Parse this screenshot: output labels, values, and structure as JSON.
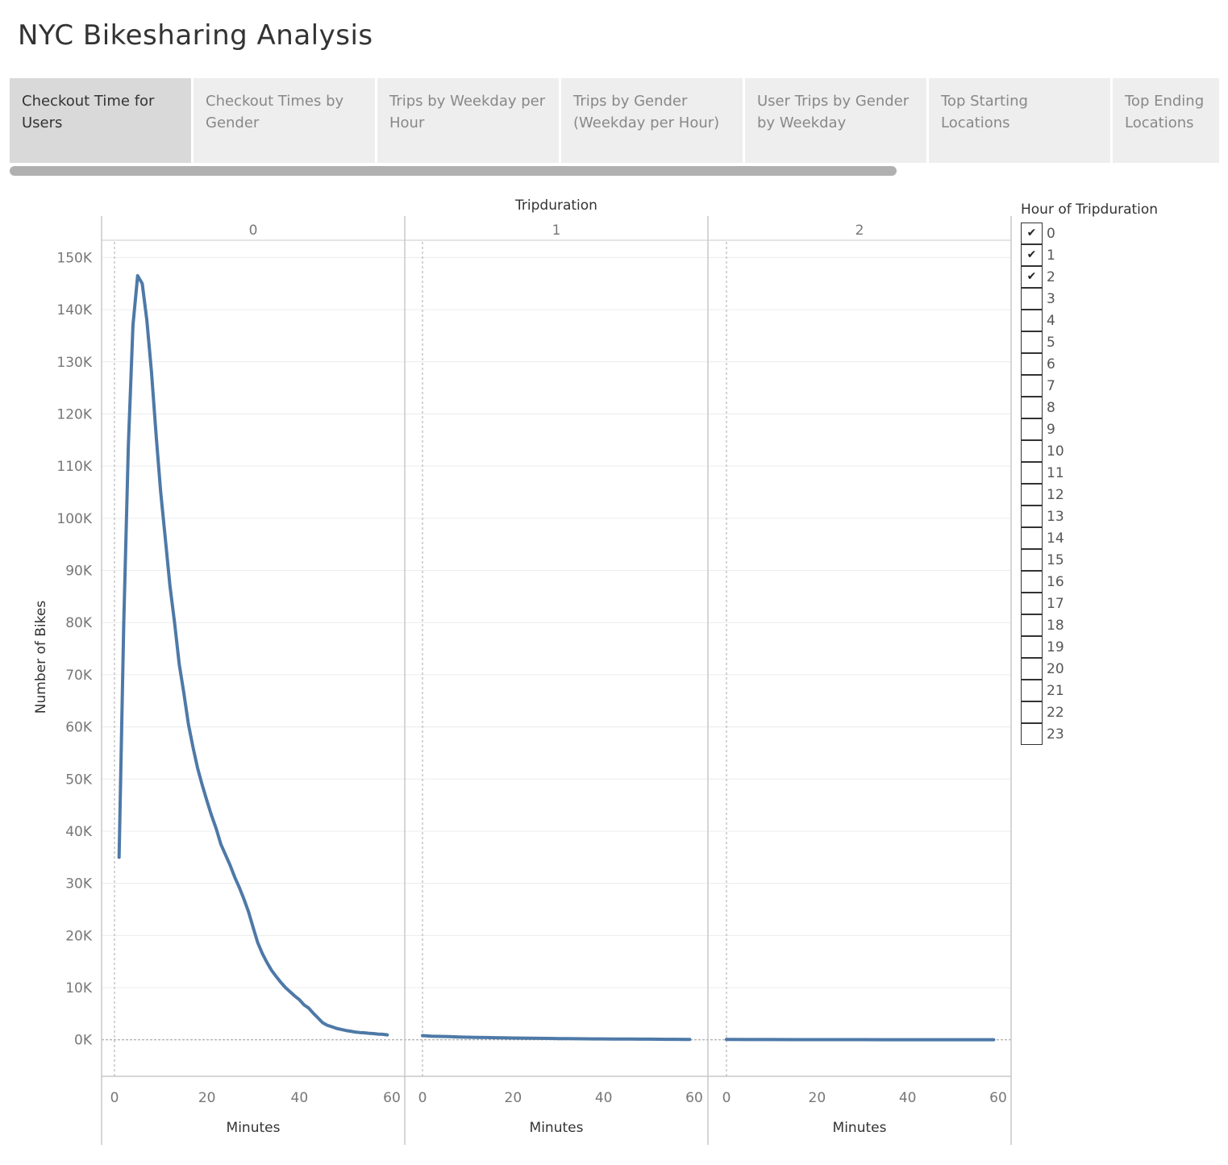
{
  "page": {
    "title": "NYC Bikesharing Analysis"
  },
  "tabs": [
    {
      "label": "Checkout Time for Users",
      "active": true
    },
    {
      "label": "Checkout Times by Gender",
      "active": false
    },
    {
      "label": "Trips by Weekday per Hour",
      "active": false
    },
    {
      "label": "Trips by Gender (Weekday per Hour)",
      "active": false
    },
    {
      "label": "User Trips by Gender by Weekday",
      "active": false
    },
    {
      "label": "Top Starting Locations",
      "active": false
    },
    {
      "label": "Top Ending Locations",
      "active": false
    }
  ],
  "legend": {
    "title": "Hour of Tripduration",
    "items": [
      {
        "label": "0",
        "checked": true
      },
      {
        "label": "1",
        "checked": true
      },
      {
        "label": "2",
        "checked": true
      },
      {
        "label": "3",
        "checked": false
      },
      {
        "label": "4",
        "checked": false
      },
      {
        "label": "5",
        "checked": false
      },
      {
        "label": "6",
        "checked": false
      },
      {
        "label": "7",
        "checked": false
      },
      {
        "label": "8",
        "checked": false
      },
      {
        "label": "9",
        "checked": false
      },
      {
        "label": "10",
        "checked": false
      },
      {
        "label": "11",
        "checked": false
      },
      {
        "label": "12",
        "checked": false
      },
      {
        "label": "13",
        "checked": false
      },
      {
        "label": "14",
        "checked": false
      },
      {
        "label": "15",
        "checked": false
      },
      {
        "label": "16",
        "checked": false
      },
      {
        "label": "17",
        "checked": false
      },
      {
        "label": "18",
        "checked": false
      },
      {
        "label": "19",
        "checked": false
      },
      {
        "label": "20",
        "checked": false
      },
      {
        "label": "21",
        "checked": false
      },
      {
        "label": "22",
        "checked": false
      },
      {
        "label": "23",
        "checked": false
      }
    ]
  },
  "colors": {
    "line": "#4e79a7",
    "grid": "#ececec",
    "axis": "#c8c8c8"
  },
  "chart_data": {
    "type": "line",
    "facet_title": "Tripduration",
    "ylabel": "Number of Bikes",
    "xlabel": "Minutes",
    "ylim": [
      -7000,
      153000
    ],
    "yticks": [
      0,
      10000,
      20000,
      30000,
      40000,
      50000,
      60000,
      70000,
      80000,
      90000,
      100000,
      110000,
      120000,
      130000,
      140000,
      150000
    ],
    "ytick_labels": [
      "0K",
      "10K",
      "20K",
      "30K",
      "40K",
      "50K",
      "60K",
      "70K",
      "80K",
      "90K",
      "100K",
      "110K",
      "120K",
      "130K",
      "140K",
      "150K"
    ],
    "grid": true,
    "legend_position": "right",
    "panels": [
      {
        "label": "0",
        "xlim": [
          -2,
          62
        ],
        "xticks": [
          0,
          20,
          40,
          60
        ],
        "series": [
          {
            "x": [
              1,
              2,
              3,
              4,
              5,
              6,
              7,
              8,
              9,
              10,
              11,
              12,
              13,
              14,
              15,
              16,
              17,
              18,
              19,
              20,
              21,
              22,
              23,
              24,
              25,
              26,
              27,
              28,
              29,
              30,
              31,
              32,
              33,
              34,
              35,
              36,
              37,
              38,
              39,
              40,
              41,
              42,
              43,
              44,
              45,
              46,
              47,
              48,
              49,
              50,
              51,
              52,
              53,
              54,
              55,
              56,
              57,
              58,
              59
            ],
            "y": [
              35000,
              80000,
              114000,
              137000,
              146500,
              145000,
              138000,
              128000,
              116000,
              105000,
              96000,
              87000,
              80000,
              72000,
              66500,
              60500,
              56000,
              52000,
              48800,
              45800,
              43000,
              40500,
              37500,
              35500,
              33500,
              31200,
              29200,
              27000,
              24500,
              21500,
              18600,
              16500,
              14800,
              13300,
              12100,
              11000,
              10000,
              9200,
              8400,
              7700,
              6700,
              6100,
              5100,
              4200,
              3300,
              2800,
              2500,
              2200,
              2000,
              1800,
              1650,
              1500,
              1400,
              1350,
              1250,
              1200,
              1100,
              1050,
              950
            ]
          }
        ]
      },
      {
        "label": "1",
        "xlim": [
          0,
          60
        ],
        "xticks": [
          0,
          20,
          40,
          60
        ],
        "series": [
          {
            "x": [
              0,
              2,
              4,
              6,
              8,
              10,
              12,
              14,
              16,
              18,
              20,
              22,
              24,
              26,
              28,
              30,
              32,
              34,
              36,
              38,
              40,
              42,
              44,
              46,
              48,
              50,
              52,
              54,
              56,
              58,
              59
            ],
            "y": [
              800,
              700,
              650,
              600,
              550,
              500,
              470,
              430,
              400,
              370,
              340,
              320,
              300,
              280,
              260,
              240,
              220,
              200,
              190,
              180,
              170,
              160,
              150,
              140,
              130,
              120,
              110,
              100,
              90,
              80,
              80
            ]
          }
        ]
      },
      {
        "label": "2",
        "xlim": [
          0,
          60
        ],
        "xticks": [
          0,
          20,
          40,
          60
        ],
        "series": [
          {
            "x": [
              0,
              5,
              10,
              15,
              20,
              25,
              30,
              35,
              40,
              45,
              50,
              55,
              59
            ],
            "y": [
              60,
              50,
              45,
              40,
              35,
              30,
              28,
              25,
              22,
              20,
              18,
              15,
              12
            ]
          }
        ]
      }
    ]
  }
}
